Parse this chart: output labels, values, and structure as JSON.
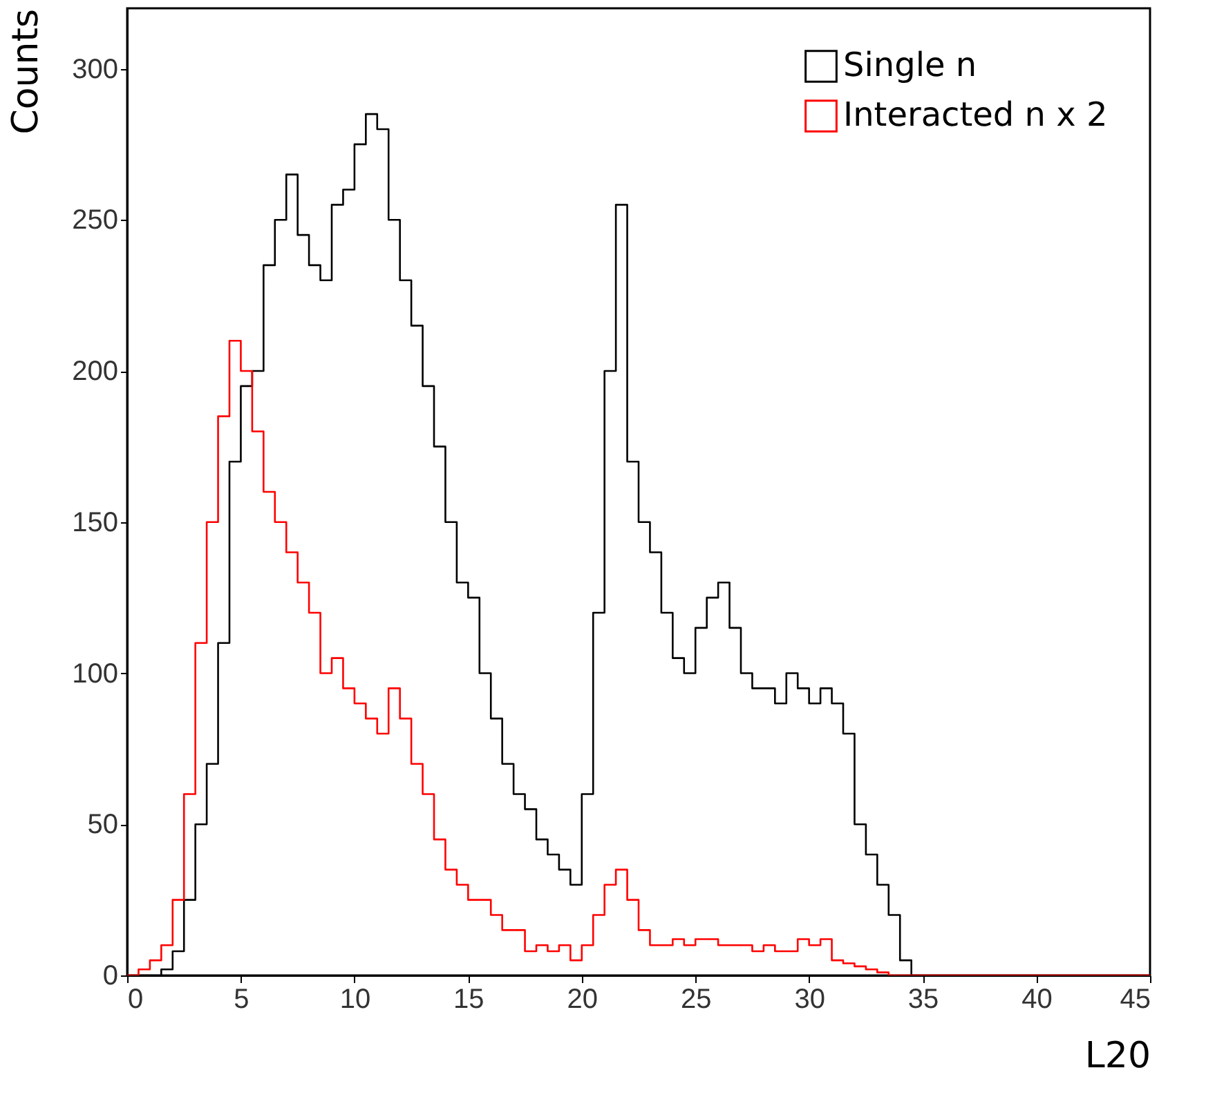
{
  "chart_data": {
    "type": "histogram",
    "xlabel": "L20",
    "ylabel": "Counts",
    "bins": [
      0,
      0.5,
      1,
      1.5,
      2,
      2.5,
      3,
      3.5,
      4,
      4.5,
      5,
      5.5,
      6,
      6.5,
      7,
      7.5,
      8,
      8.5,
      9,
      9.5,
      10,
      10.5,
      11,
      11.5,
      12,
      12.5,
      13,
      13.5,
      14,
      14.5,
      15,
      15.5,
      16,
      16.5,
      17,
      17.5,
      18,
      18.5,
      19,
      19.5,
      20,
      20.5,
      21,
      21.5,
      22,
      22.5,
      23,
      23.5,
      24,
      24.5,
      25,
      25.5,
      26,
      26.5,
      27,
      27.5,
      28,
      28.5,
      29,
      29.5,
      30,
      30.5,
      31,
      31.5,
      32,
      32.5,
      33,
      33.5,
      34,
      34.5,
      35,
      35.5,
      36,
      36.5,
      37,
      37.5,
      38,
      38.5,
      39,
      39.5,
      40,
      40.5,
      41,
      41.5,
      42,
      42.5,
      43,
      43.5,
      44,
      44.5,
      45
    ],
    "series": [
      {
        "name": "Single n",
        "color": "#000000",
        "values": [
          0,
          0,
          0,
          2,
          8,
          25,
          50,
          70,
          110,
          170,
          195,
          200,
          235,
          250,
          265,
          245,
          235,
          230,
          255,
          260,
          275,
          285,
          280,
          250,
          230,
          215,
          195,
          175,
          150,
          130,
          125,
          100,
          85,
          70,
          60,
          55,
          45,
          40,
          35,
          30,
          60,
          120,
          200,
          255,
          170,
          150,
          140,
          120,
          105,
          100,
          115,
          125,
          130,
          115,
          100,
          95,
          95,
          90,
          100,
          95,
          90,
          95,
          90,
          80,
          50,
          40,
          30,
          20,
          5,
          0,
          0,
          0,
          0,
          0,
          0,
          0,
          0,
          0,
          0,
          0,
          0,
          0,
          0,
          0,
          0,
          0,
          0,
          0,
          0,
          0
        ]
      },
      {
        "name": "Interacted n x 2",
        "color": "#ff0000",
        "values": [
          0,
          2,
          5,
          10,
          25,
          60,
          110,
          150,
          185,
          210,
          200,
          180,
          160,
          150,
          140,
          130,
          120,
          100,
          105,
          95,
          90,
          85,
          80,
          95,
          85,
          70,
          60,
          45,
          35,
          30,
          25,
          25,
          20,
          15,
          15,
          8,
          10,
          8,
          10,
          5,
          10,
          20,
          30,
          35,
          25,
          15,
          10,
          10,
          12,
          10,
          12,
          12,
          10,
          10,
          10,
          8,
          10,
          8,
          8,
          12,
          10,
          12,
          5,
          4,
          3,
          2,
          1,
          0,
          0,
          0,
          0,
          0,
          0,
          0,
          0,
          0,
          0,
          0,
          0,
          0,
          0,
          0,
          0,
          0,
          0,
          0,
          0,
          0,
          0,
          0
        ]
      }
    ],
    "xlim": [
      0,
      45
    ],
    "xticks": [
      0,
      5,
      10,
      15,
      20,
      25,
      30,
      35,
      40,
      45
    ],
    "ylim": [
      0,
      320
    ],
    "yticks": [
      0,
      50,
      100,
      150,
      200,
      250,
      300
    ],
    "grid": false,
    "legend": "top right"
  }
}
